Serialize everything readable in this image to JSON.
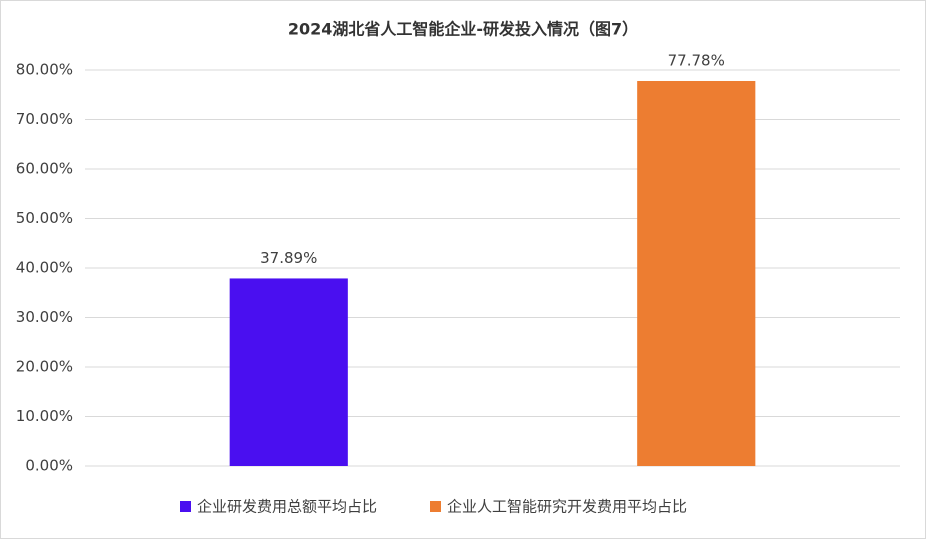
{
  "chart_data": {
    "type": "bar",
    "title": "2024湖北省人工智能企业-研发投入情况（图7）",
    "categories": [
      null,
      null
    ],
    "series": [
      {
        "name": "企业研发费用总额平均占比",
        "color": "#4a0ff0",
        "values": [
          37.89,
          null
        ],
        "value_labels": [
          "37.89%",
          null
        ]
      },
      {
        "name": "企业人工智能研究开发费用平均占比",
        "color": "#ed7d31",
        "values": [
          null,
          77.78
        ],
        "value_labels": [
          null,
          "77.78%"
        ]
      }
    ],
    "ylim": [
      0,
      80
    ],
    "yticks": [
      {
        "value": 0,
        "label": "0.00%"
      },
      {
        "value": 10,
        "label": "10.00%"
      },
      {
        "value": 20,
        "label": "20.00%"
      },
      {
        "value": 30,
        "label": "30.00%"
      },
      {
        "value": 40,
        "label": "40.00%"
      },
      {
        "value": 50,
        "label": "50.00%"
      },
      {
        "value": 60,
        "label": "60.00%"
      },
      {
        "value": 70,
        "label": "70.00%"
      },
      {
        "value": 80,
        "label": "80.00%"
      }
    ],
    "grid": true,
    "legend": "bottom"
  }
}
